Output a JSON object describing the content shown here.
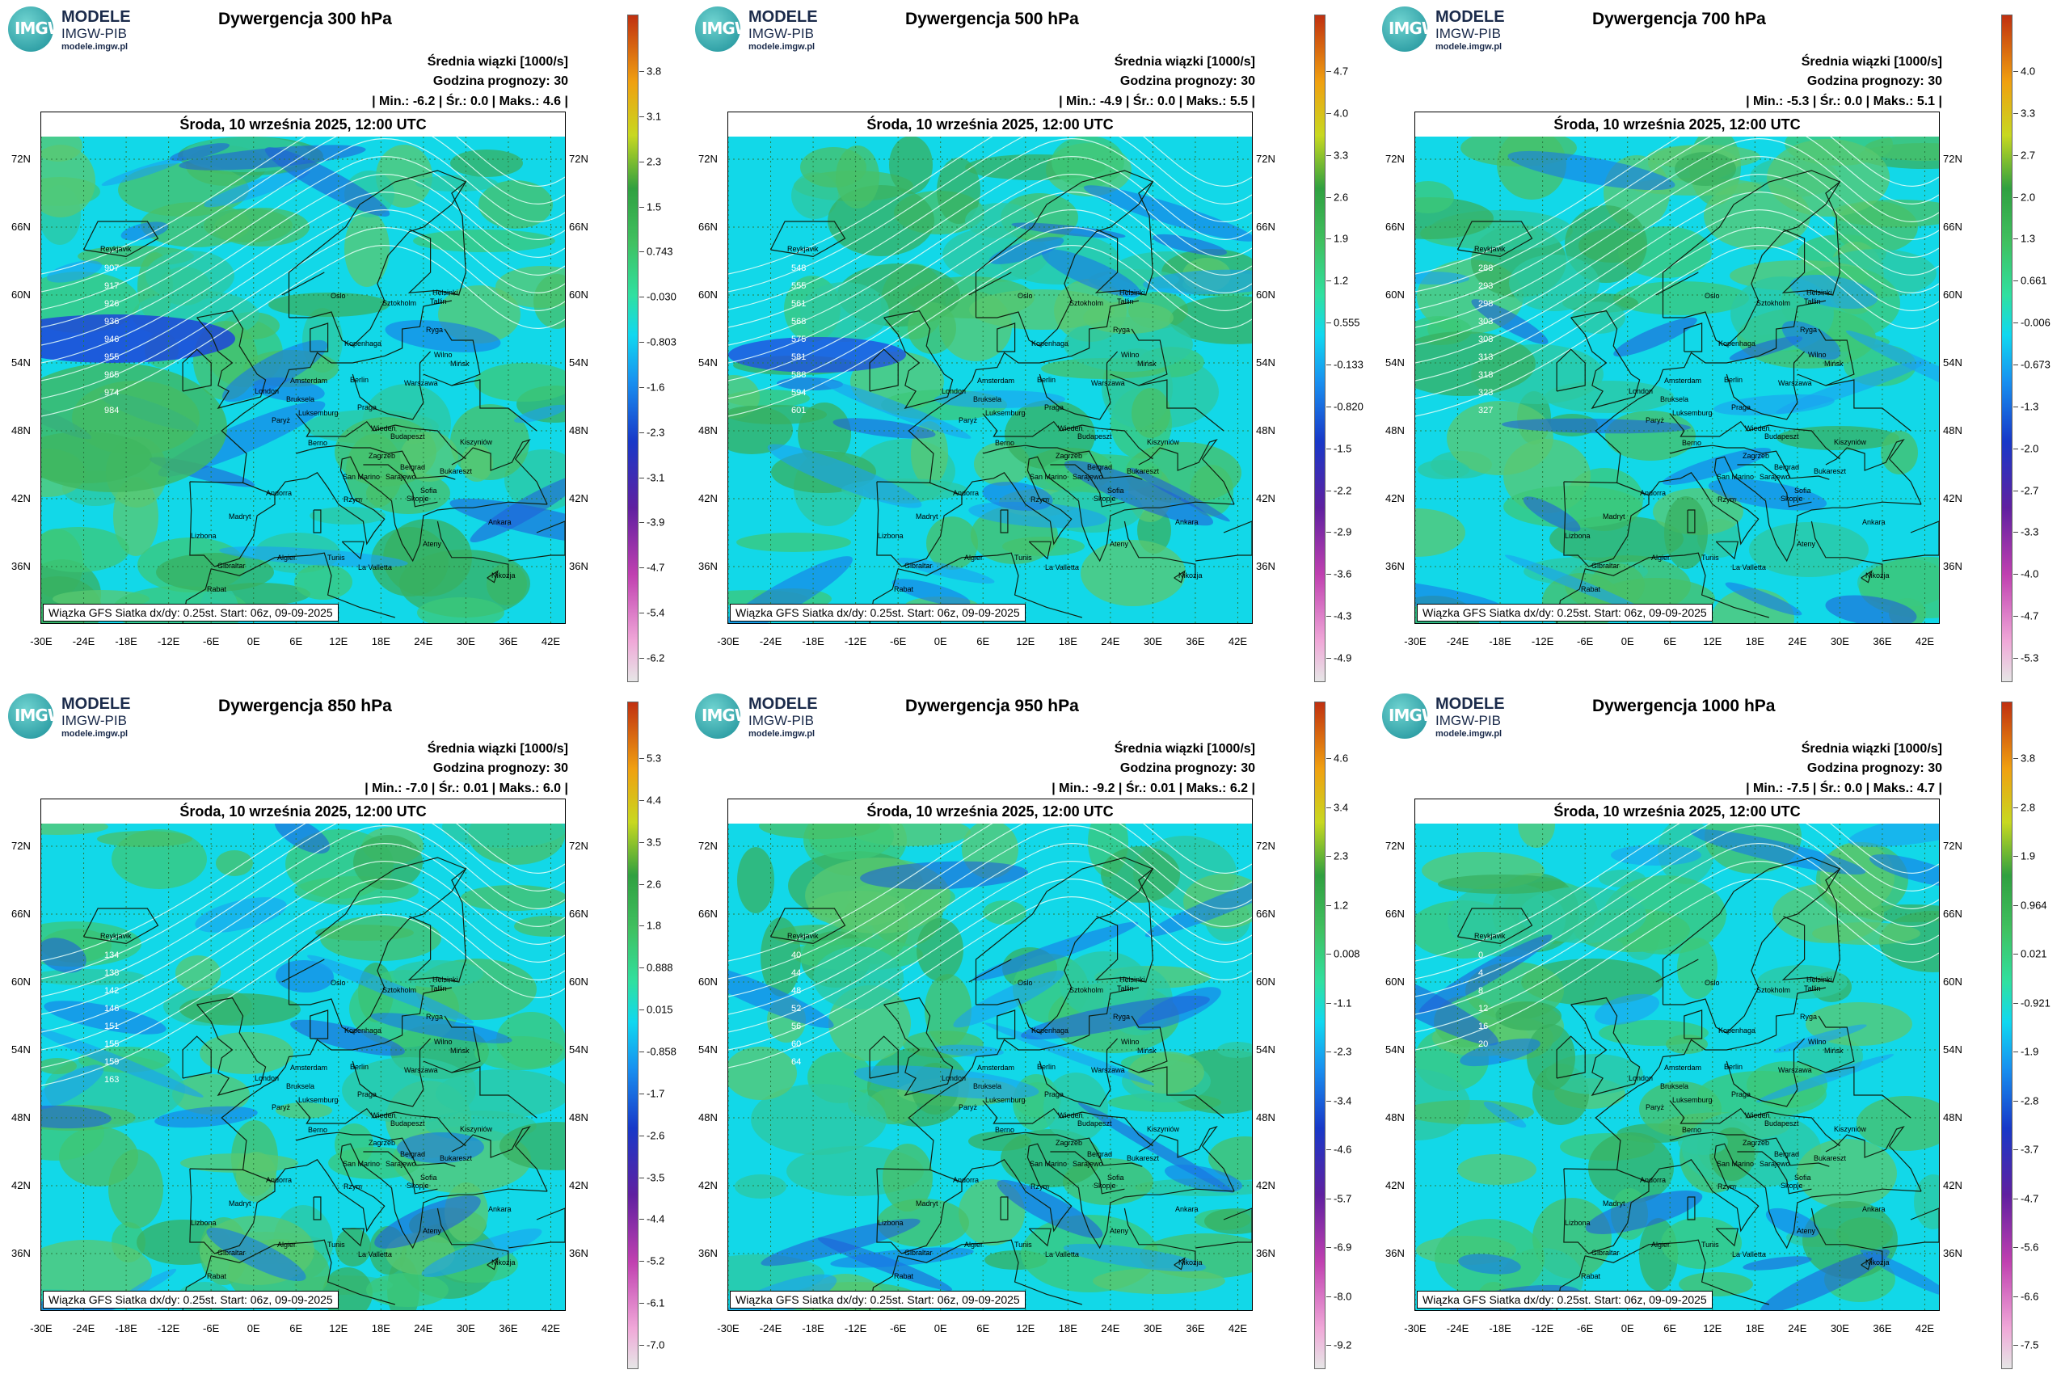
{
  "logo": {
    "abbr": "IMGW",
    "line1": "MODELE",
    "line2": "IMGW-PIB",
    "line3": "modele.imgw.pl"
  },
  "common": {
    "field": "Średnia wiązki [1000/s]",
    "forecast": "Godzina prognozy: 30",
    "date": "Środa, 10 września 2025, 12:00 UTC",
    "footer": "Wiązka GFS Siatka dx/dy: 0.25st. Start: 06z, 09-09-2025",
    "lat_labels": [
      "72N",
      "66N",
      "60N",
      "54N",
      "48N",
      "42N",
      "36N"
    ],
    "lon_labels": [
      "-30E",
      "-24E",
      "-18E",
      "-12E",
      "-6E",
      "0E",
      "6E",
      "12E",
      "18E",
      "24E",
      "30E",
      "36E",
      "42E"
    ]
  },
  "colors": {
    "low": "#e8b0e0",
    "mid_neg": "#1e3fd0",
    "cyan": "#00e0f0",
    "green": "#40c060",
    "high": "#c04010"
  },
  "panels": [
    {
      "title": "Dywergencja 300 hPa",
      "stats": "| Min.:   -6.2 | Śr.:    0.0 | Maks.:    4.6 |",
      "scale": [
        "3.8",
        "3.1",
        "2.3",
        "1.5",
        "0.743",
        "-0.030",
        "-0.803",
        "-1.6",
        "-2.3",
        "-3.1",
        "-3.9",
        "-4.7",
        "-5.4",
        "-6.2"
      ]
    },
    {
      "title": "Dywergencja 500 hPa",
      "stats": "| Min.:   -4.9 | Śr.:    0.0 | Maks.:    5.5 |",
      "scale": [
        "4.7",
        "4.0",
        "3.3",
        "2.6",
        "1.9",
        "1.2",
        "0.555",
        "-0.133",
        "-0.820",
        "-1.5",
        "-2.2",
        "-2.9",
        "-3.6",
        "-4.3",
        "-4.9"
      ]
    },
    {
      "title": "Dywergencja 700 hPa",
      "stats": "| Min.:   -5.3 | Śr.:    0.0 | Maks.:    5.1 |",
      "scale": [
        "4.0",
        "3.3",
        "2.7",
        "2.0",
        "1.3",
        "0.661",
        "-0.006",
        "-0.673",
        "-1.3",
        "-2.0",
        "-2.7",
        "-3.3",
        "-4.0",
        "-4.7",
        "-5.3"
      ]
    },
    {
      "title": "Dywergencja 850 hPa",
      "stats": "| Min.:   -7.0 | Śr.:   0.01 | Maks.:    6.0 |",
      "scale": [
        "5.3",
        "4.4",
        "3.5",
        "2.6",
        "1.8",
        "0.888",
        "0.015",
        "-0.858",
        "-1.7",
        "-2.6",
        "-3.5",
        "-4.4",
        "-5.2",
        "-6.1",
        "-7.0"
      ]
    },
    {
      "title": "Dywergencja 950 hPa",
      "stats": "| Min.:   -9.2 | Śr.:   0.01 | Maks.:    6.2 |",
      "scale": [
        "4.6",
        "3.4",
        "2.3",
        "1.2",
        "0.008",
        "-1.1",
        "-2.3",
        "-3.4",
        "-4.6",
        "-5.7",
        "-6.9",
        "-8.0",
        "-9.2"
      ]
    },
    {
      "title": "Dywergencja 1000 hPa",
      "stats": "| Min.:   -7.5 | Śr.:    0.0 | Maks.:    4.7 |",
      "scale": [
        "3.8",
        "2.8",
        "1.9",
        "0.964",
        "0.021",
        "-0.921",
        "-1.9",
        "-2.8",
        "-3.7",
        "-4.7",
        "-5.6",
        "-6.6",
        "-7.5"
      ]
    }
  ],
  "cities": [
    "Oslo",
    "Sztokholm",
    "Helsinki",
    "Tallin",
    "Ryga",
    "Wilno",
    "Mińsk",
    "Kopenhaga",
    "Amsterdam",
    "Berlin",
    "Warszawa",
    "London",
    "Bruksela",
    "Luksemburg",
    "Paryż",
    "Praga",
    "Wiedeń",
    "Budapeszt",
    "Kiszyniów",
    "Bukareszt",
    "Belgrad",
    "Sarajewo",
    "Zagrzeb",
    "San Marino",
    "Berno",
    "Andorra",
    "Madryt",
    "Lizbona",
    "Rzym",
    "Skopje",
    "Sofia",
    "Ankara",
    "Ateny",
    "Algier",
    "Tunis",
    "La Valletta",
    "Gibraltar",
    "Rabat",
    "Nikozja",
    "Reykjavik"
  ]
}
